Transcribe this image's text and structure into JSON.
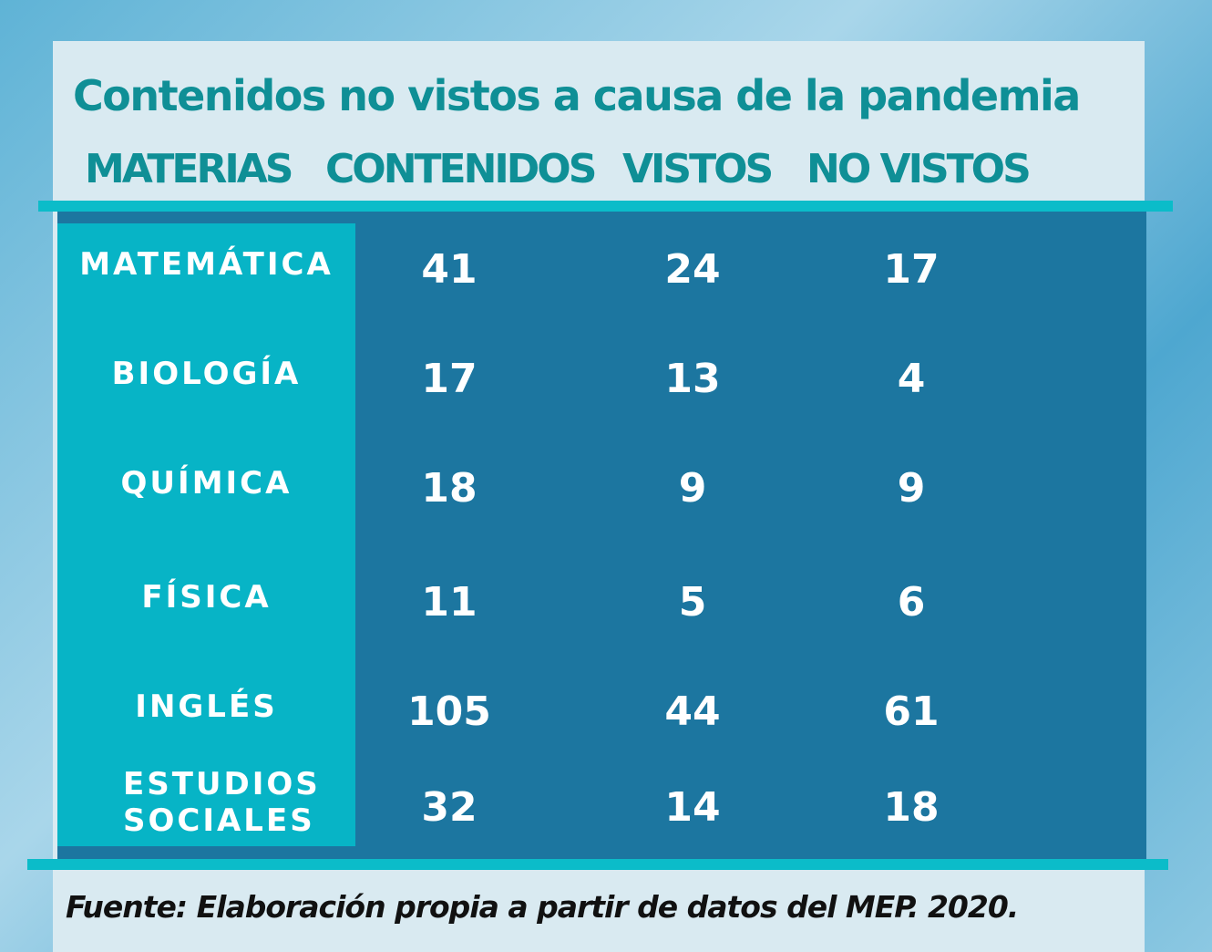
{
  "title": "Contenidos no vistos a causa de la pandemia",
  "table": {
    "headers": [
      "MATERIAS",
      "CONTENIDOS",
      "VISTOS",
      "NO VISTOS"
    ],
    "rows": [
      [
        "MATEMÁTICA",
        41,
        24,
        17
      ],
      [
        "BIOLOGÍA",
        17,
        13,
        4
      ],
      [
        "QUÍMICA",
        18,
        9,
        9
      ],
      [
        "FÍSICA",
        11,
        5,
        6
      ],
      [
        "INGLÉS",
        105,
        44,
        61
      ],
      [
        "ESTUDIOS SOCIALES",
        32,
        14,
        18
      ]
    ]
  },
  "source": "Fuente: Elaboración propia a partir de datos del MEP. 2020."
}
